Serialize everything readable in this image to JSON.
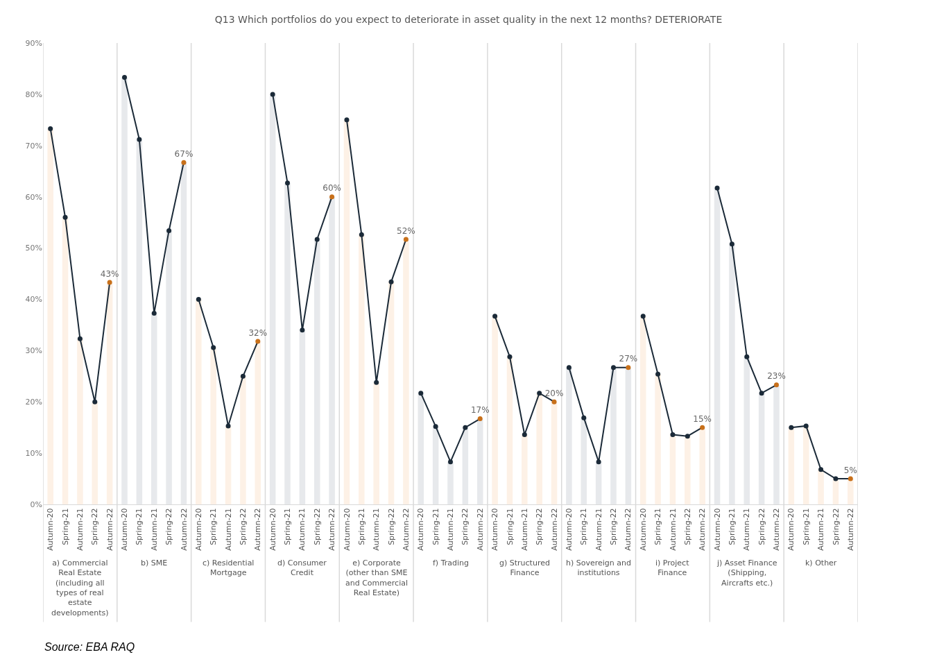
{
  "chart_data": {
    "type": "line",
    "title": "Q13 Which portfolios do you expect to deteriorate in asset quality in the next 12 months? DETERIORATE",
    "categories": [
      "Autumn-20",
      "Spring-21",
      "Autumn-21",
      "Spring-22",
      "Autumn-22",
      "Autumn-20",
      "Spring-21",
      "Autumn-21",
      "Spring-22",
      "Autumn-22",
      "Autumn-20",
      "Spring-21",
      "Autumn-21",
      "Spring-22",
      "Autumn-22",
      "Autumn-20",
      "Spring-21",
      "Autumn-21",
      "Spring-22",
      "Autumn-22",
      "Autumn-20",
      "Spring-21",
      "Autumn-21",
      "Spring-22",
      "Autumn-22",
      "Autumn-20",
      "Spring-21",
      "Autumn-21",
      "Spring-22",
      "Autumn-22",
      "Autumn-20",
      "Spring-21",
      "Autumn-21",
      "Spring-22",
      "Autumn-22",
      "Autumn-20",
      "Spring-21",
      "Autumn-21",
      "Spring-22",
      "Autumn-22",
      "Autumn-20",
      "Spring-21",
      "Autumn-21",
      "Spring-22",
      "Autumn-22",
      "Autumn-20",
      "Spring-21",
      "Autumn-21",
      "Spring-22",
      "Autumn-22",
      "Autumn-20",
      "Spring-21",
      "Autumn-21",
      "Spring-22",
      "Autumn-22"
    ],
    "series": [
      {
        "type": "bar",
        "colors": [
          "#fdf1e6",
          "#fdf1e6",
          "#fdf1e6",
          "#fdf1e6",
          "#fdf1e6",
          "#e7e9ec",
          "#e7e9ec",
          "#e7e9ec",
          "#e7e9ec",
          "#e7e9ec",
          "#fdf1e6",
          "#fdf1e6",
          "#fdf1e6",
          "#fdf1e6",
          "#fdf1e6",
          "#e7e9ec",
          "#e7e9ec",
          "#e7e9ec",
          "#e7e9ec",
          "#e7e9ec",
          "#fdf1e6",
          "#fdf1e6",
          "#fdf1e6",
          "#fdf1e6",
          "#fdf1e6",
          "#e7e9ec",
          "#e7e9ec",
          "#e7e9ec",
          "#e7e9ec",
          "#e7e9ec",
          "#fdf1e6",
          "#fdf1e6",
          "#fdf1e6",
          "#fdf1e6",
          "#fdf1e6",
          "#e7e9ec",
          "#e7e9ec",
          "#e7e9ec",
          "#e7e9ec",
          "#e7e9ec",
          "#fdf1e6",
          "#fdf1e6",
          "#fdf1e6",
          "#fdf1e6",
          "#fdf1e6",
          "#e7e9ec",
          "#e7e9ec",
          "#e7e9ec",
          "#e7e9ec",
          "#e7e9ec",
          "#fdf1e6",
          "#fdf1e6",
          "#fdf1e6",
          "#fdf1e6",
          "#fdf1e6"
        ],
        "values": [
          73.3,
          56,
          32.3,
          20,
          43.3,
          83.3,
          71.2,
          37.3,
          53.4,
          66.7,
          40,
          30.6,
          15.3,
          25,
          31.8,
          80,
          62.7,
          34,
          51.7,
          60,
          75,
          52.6,
          23.8,
          43.4,
          51.7,
          21.7,
          15.2,
          8.3,
          15,
          16.7,
          36.7,
          28.8,
          13.6,
          21.7,
          20,
          26.7,
          16.9,
          8.3,
          26.7,
          26.7,
          36.7,
          25.4,
          13.6,
          13.3,
          15,
          61.7,
          50.8,
          28.8,
          21.7,
          23.3,
          15,
          15.3,
          6.8,
          5,
          5
        ]
      },
      {
        "color": "#1b2a38",
        "colors": [
          "#1b2a38",
          "#1b2a38",
          "#1b2a38",
          "#1b2a38",
          "#c8701a",
          "#1b2a38",
          "#1b2a38",
          "#1b2a38",
          "#1b2a38",
          "#c8701a",
          "#1b2a38",
          "#1b2a38",
          "#1b2a38",
          "#1b2a38",
          "#c8701a",
          "#1b2a38",
          "#1b2a38",
          "#1b2a38",
          "#1b2a38",
          "#c8701a",
          "#1b2a38",
          "#1b2a38",
          "#1b2a38",
          "#1b2a38",
          "#c8701a",
          "#1b2a38",
          "#1b2a38",
          "#1b2a38",
          "#1b2a38",
          "#c8701a",
          "#1b2a38",
          "#1b2a38",
          "#1b2a38",
          "#1b2a38",
          "#c8701a",
          "#1b2a38",
          "#1b2a38",
          "#1b2a38",
          "#1b2a38",
          "#c8701a",
          "#1b2a38",
          "#1b2a38",
          "#1b2a38",
          "#1b2a38",
          "#c8701a",
          "#1b2a38",
          "#1b2a38",
          "#1b2a38",
          "#1b2a38",
          "#c8701a",
          "#1b2a38",
          "#1b2a38",
          "#1b2a38",
          "#1b2a38",
          "#c8701a"
        ],
        "values": [
          73.3,
          56,
          32.3,
          20,
          43.3,
          83.3,
          71.2,
          37.3,
          53.4,
          66.7,
          40,
          30.6,
          15.3,
          25,
          31.8,
          80,
          62.7,
          34,
          51.7,
          60,
          75,
          52.6,
          23.8,
          43.4,
          51.7,
          21.7,
          15.2,
          8.3,
          15,
          16.7,
          36.7,
          28.8,
          13.6,
          21.7,
          20,
          26.7,
          16.9,
          8.3,
          26.7,
          26.7,
          36.7,
          25.4,
          13.6,
          13.3,
          15,
          61.7,
          50.8,
          28.8,
          21.7,
          23.3,
          15,
          15.3,
          6.8,
          5,
          5
        ],
        "value_labels": [
          null,
          null,
          null,
          null,
          "43%",
          null,
          null,
          null,
          null,
          "67%",
          null,
          null,
          null,
          null,
          "32%",
          null,
          null,
          null,
          null,
          "60%",
          null,
          null,
          null,
          null,
          "52%",
          null,
          null,
          null,
          null,
          "17%",
          null,
          null,
          null,
          null,
          "20%",
          null,
          null,
          null,
          null,
          "27%",
          null,
          null,
          null,
          null,
          "15%",
          null,
          null,
          null,
          null,
          "23%",
          null,
          null,
          null,
          null,
          "5%"
        ]
      }
    ],
    "ylim": [
      0,
      90
    ],
    "yticks": [
      {
        "value": 0,
        "label": "0%"
      },
      {
        "value": 10,
        "label": "10%"
      },
      {
        "value": 20,
        "label": "20%"
      },
      {
        "value": 30,
        "label": "30%"
      },
      {
        "value": 40,
        "label": "40%"
      },
      {
        "value": 50,
        "label": "50%"
      },
      {
        "value": 60,
        "label": "60%"
      },
      {
        "value": 70,
        "label": "70%"
      },
      {
        "value": 80,
        "label": "80%"
      },
      {
        "value": 90,
        "label": "90%"
      }
    ],
    "marker": "circle",
    "grid": false,
    "annotations": [
      "a) Commercial Real Estate (including all types of real estate developments)",
      "b) SME",
      "c) Residential Mortgage",
      "d) Consumer Credit",
      "e) Corporate (other than SME and Commercial Real Estate)",
      "f) Trading",
      "g) Structured Finance",
      "h) Sovereign and institutions",
      "i) Project Finance",
      "j) Asset Finance (Shipping, Aircrafts etc.)",
      "k) Other",
      "Source: EBA RAQ"
    ]
  }
}
